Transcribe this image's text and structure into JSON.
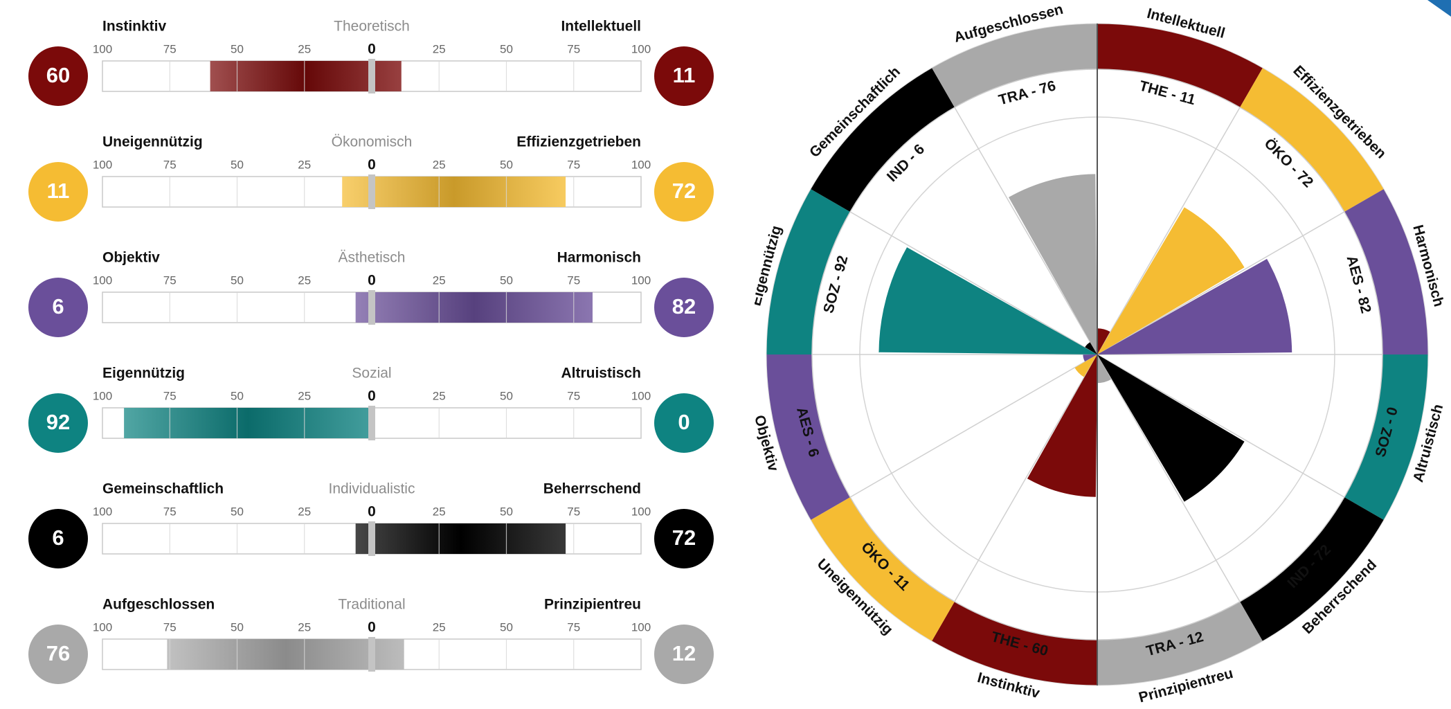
{
  "chart_data": [
    {
      "type": "bar",
      "layout": "diverging horizontal bars",
      "scale_ticks": [
        "100",
        "75",
        "50",
        "25",
        "0",
        "25",
        "50",
        "75",
        "100"
      ],
      "xlim": [
        -100,
        100
      ],
      "rows": [
        {
          "left_label": "Instinktiv",
          "center_label": "Theoretisch",
          "right_label": "Intellektuell",
          "left_value": 60,
          "right_value": 11,
          "left_badge": "60",
          "right_badge": "11",
          "color": "#7b0a0a"
        },
        {
          "left_label": "Uneigennützig",
          "center_label": "Ökonomisch",
          "right_label": "Effizienzgetrieben",
          "left_value": 11,
          "right_value": 72,
          "left_badge": "11",
          "right_badge": "72",
          "color": "#f5bc33"
        },
        {
          "left_label": "Objektiv",
          "center_label": "Ästhetisch",
          "right_label": "Harmonisch",
          "left_value": 6,
          "right_value": 82,
          "left_badge": "6",
          "right_badge": "82",
          "color": "#6a4f9a"
        },
        {
          "left_label": "Eigennützig",
          "center_label": "Sozial",
          "right_label": "Altruistisch",
          "left_value": 92,
          "right_value": 0,
          "left_badge": "92",
          "right_badge": "0",
          "color": "#0e8381"
        },
        {
          "left_label": "Gemeinschaftlich",
          "center_label": "Individualistic",
          "right_label": "Beherrschend",
          "left_value": 6,
          "right_value": 72,
          "left_badge": "6",
          "right_badge": "72",
          "color": "#000000"
        },
        {
          "left_label": "Aufgeschlossen",
          "center_label": "Traditional",
          "right_label": "Prinzipientreu",
          "left_value": 76,
          "right_value": 12,
          "left_badge": "76",
          "right_badge": "12",
          "color": "#a9a9a9"
        }
      ]
    },
    {
      "type": "polar_area",
      "max": 100,
      "sectors": [
        {
          "label": "THE - 11",
          "outer_label": "Intellektuell",
          "value": 11,
          "color": "#7b0a0a"
        },
        {
          "label": "ÖKO - 72",
          "outer_label": "Effizienzgetrieben",
          "value": 72,
          "color": "#f5bc33"
        },
        {
          "label": "AES - 82",
          "outer_label": "Harmonisch",
          "value": 82,
          "color": "#6a4f9a"
        },
        {
          "label": "SOZ - 0",
          "outer_label": "Altruistisch",
          "value": 0,
          "color": "#0e8381"
        },
        {
          "label": "IND - 72",
          "outer_label": "Beherrschend",
          "value": 72,
          "color": "#000000"
        },
        {
          "label": "TRA - 12",
          "outer_label": "Prinzipientreu",
          "value": 12,
          "color": "#a9a9a9"
        },
        {
          "label": "THE - 60",
          "outer_label": "Instinktiv",
          "value": 60,
          "color": "#7b0a0a"
        },
        {
          "label": "ÖKO - 11",
          "outer_label": "Uneigennützig",
          "value": 11,
          "color": "#f5bc33"
        },
        {
          "label": "AES - 6",
          "outer_label": "Objektiv",
          "value": 6,
          "color": "#6a4f9a"
        },
        {
          "label": "SOZ - 92",
          "outer_label": "Eigennützig",
          "value": 92,
          "color": "#0e8381"
        },
        {
          "label": "IND - 6",
          "outer_label": "Gemeinschaftlich",
          "value": 6,
          "color": "#000000"
        },
        {
          "label": "TRA - 76",
          "outer_label": "Aufgeschlossen",
          "value": 76,
          "color": "#a9a9a9"
        }
      ]
    }
  ]
}
